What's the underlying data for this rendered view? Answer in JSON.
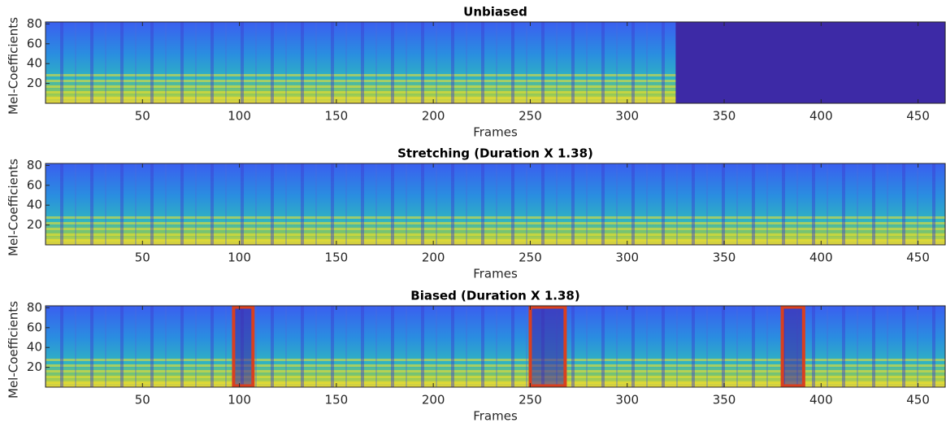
{
  "chart_data": [
    {
      "type": "spectrogram",
      "title": "Unbiased",
      "xlabel": "Frames",
      "ylabel": "Mel-Coefficients",
      "xlim": [
        0,
        464
      ],
      "ylim": [
        0,
        82
      ],
      "xticks": [
        50,
        100,
        150,
        200,
        250,
        300,
        350,
        400,
        450
      ],
      "yticks": [
        20,
        40,
        60,
        80
      ],
      "padded_from": 325,
      "padding_color": "#3d2aa6"
    },
    {
      "type": "spectrogram",
      "title": "Stretching (Duration X 1.38)",
      "xlabel": "Frames",
      "ylabel": "Mel-Coefficients",
      "xlim": [
        0,
        464
      ],
      "ylim": [
        0,
        82
      ],
      "xticks": [
        50,
        100,
        150,
        200,
        250,
        300,
        350,
        400,
        450
      ],
      "yticks": [
        20,
        40,
        60,
        80
      ]
    },
    {
      "type": "spectrogram",
      "title": "Biased (Duration X 1.38)",
      "xlabel": "Frames",
      "ylabel": "Mel-Coefficients",
      "xlim": [
        0,
        464
      ],
      "ylim": [
        0,
        82
      ],
      "xticks": [
        50,
        100,
        150,
        200,
        250,
        300,
        350,
        400,
        450
      ],
      "yticks": [
        20,
        40,
        60,
        80
      ],
      "highlight_regions": [
        [
          97,
          107
        ],
        [
          250,
          268
        ],
        [
          380,
          391
        ]
      ],
      "highlight_color": "#d9401f"
    }
  ]
}
